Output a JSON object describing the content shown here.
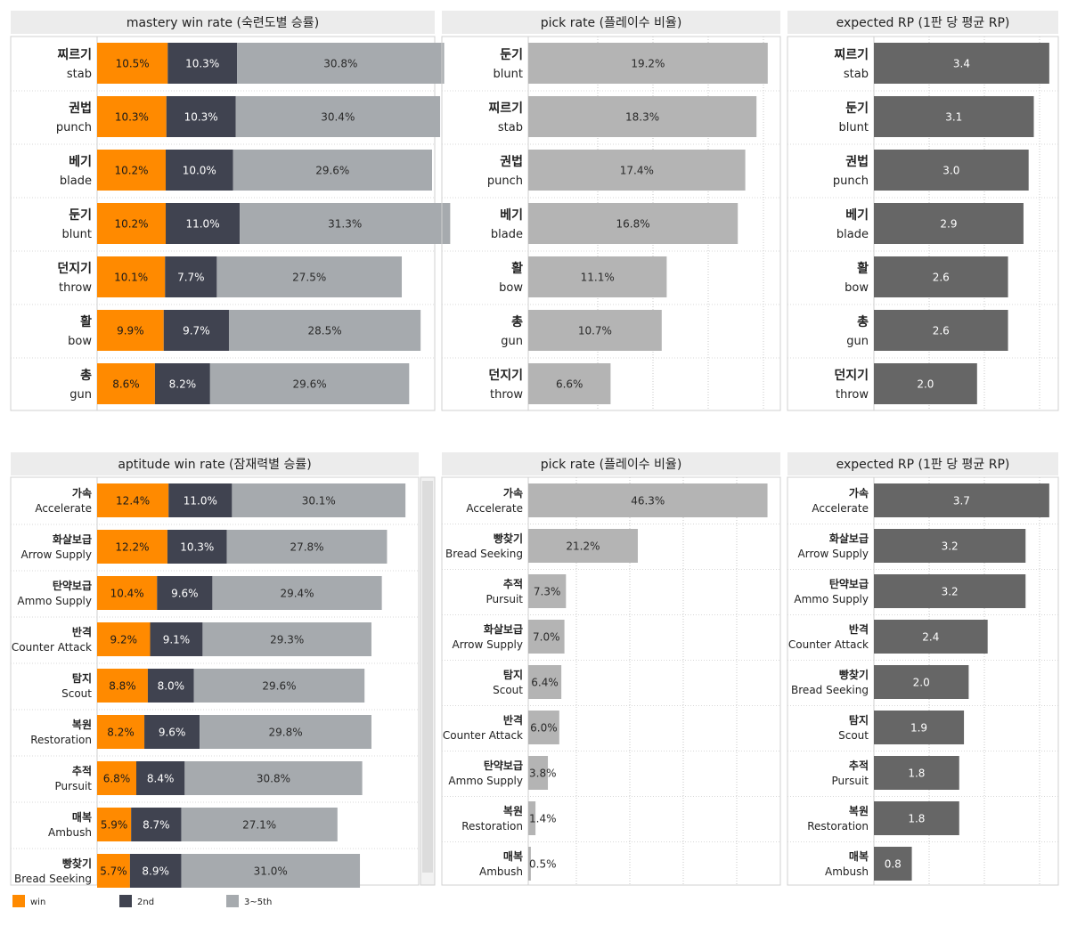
{
  "colors": {
    "win": "#ff8a00",
    "second": "#404350",
    "third": "#a6aaae",
    "pick": "#b4b4b4",
    "rp": "#666666",
    "title_bg": "#ececec"
  },
  "legend": [
    {
      "label": "win",
      "color": "#ff8a00"
    },
    {
      "label": "2nd",
      "color": "#404350"
    },
    {
      "label": "3~5th",
      "color": "#a6aaae"
    }
  ],
  "chart_data": [
    {
      "type": "bar",
      "orientation": "horizontal",
      "stacked": true,
      "title": "mastery win rate (숙련도별 승률)",
      "categories": [
        {
          "ko": "찌르기",
          "en": "stab"
        },
        {
          "ko": "권법",
          "en": "punch"
        },
        {
          "ko": "베기",
          "en": "blade"
        },
        {
          "ko": "둔기",
          "en": "blunt"
        },
        {
          "ko": "던지기",
          "en": "throw"
        },
        {
          "ko": "활",
          "en": "bow"
        },
        {
          "ko": "총",
          "en": "gun"
        }
      ],
      "series": [
        {
          "name": "win",
          "values": [
            10.5,
            10.3,
            10.2,
            10.2,
            10.1,
            9.9,
            8.6
          ],
          "labels": [
            "10.5%",
            "10.3%",
            "10.2%",
            "10.2%",
            "10.1%",
            "9.9%",
            "8.6%"
          ]
        },
        {
          "name": "2nd",
          "values": [
            10.3,
            10.3,
            10.0,
            11.0,
            7.7,
            9.7,
            8.2
          ],
          "labels": [
            "10.3%",
            "10.3%",
            "10.0%",
            "11.0%",
            "7.7%",
            "9.7%",
            "8.2%"
          ]
        },
        {
          "name": "3~5th",
          "values": [
            30.8,
            30.4,
            29.6,
            31.3,
            27.5,
            28.5,
            29.6
          ],
          "labels": [
            "30.8%",
            "30.4%",
            "29.6%",
            "31.3%",
            "27.5%",
            "28.5%",
            "29.6%"
          ]
        }
      ]
    },
    {
      "type": "bar",
      "orientation": "horizontal",
      "title": "pick rate (플레이수 비율)",
      "categories": [
        {
          "ko": "둔기",
          "en": "blunt"
        },
        {
          "ko": "찌르기",
          "en": "stab"
        },
        {
          "ko": "권법",
          "en": "punch"
        },
        {
          "ko": "베기",
          "en": "blade"
        },
        {
          "ko": "활",
          "en": "bow"
        },
        {
          "ko": "총",
          "en": "gun"
        },
        {
          "ko": "던지기",
          "en": "throw"
        }
      ],
      "values": [
        19.2,
        18.3,
        17.4,
        16.8,
        11.1,
        10.7,
        6.6
      ],
      "labels": [
        "19.2%",
        "18.3%",
        "17.4%",
        "16.8%",
        "11.1%",
        "10.7%",
        "6.6%"
      ]
    },
    {
      "type": "bar",
      "orientation": "horizontal",
      "title": "expected RP (1판 당 평균 RP)",
      "categories": [
        {
          "ko": "찌르기",
          "en": "stab"
        },
        {
          "ko": "둔기",
          "en": "blunt"
        },
        {
          "ko": "권법",
          "en": "punch"
        },
        {
          "ko": "베기",
          "en": "blade"
        },
        {
          "ko": "활",
          "en": "bow"
        },
        {
          "ko": "총",
          "en": "gun"
        },
        {
          "ko": "던지기",
          "en": "throw"
        }
      ],
      "values": [
        3.4,
        3.1,
        3.0,
        2.9,
        2.6,
        2.6,
        2.0
      ],
      "labels": [
        "3.4",
        "3.1",
        "3.0",
        "2.9",
        "2.6",
        "2.6",
        "2.0"
      ]
    },
    {
      "type": "bar",
      "orientation": "horizontal",
      "stacked": true,
      "title": "aptitude win rate (잠재력별 승률)",
      "categories": [
        {
          "ko": "가속",
          "en": "Accelerate"
        },
        {
          "ko": "화살보급",
          "en": "Arrow Supply"
        },
        {
          "ko": "탄약보급",
          "en": "Ammo Supply"
        },
        {
          "ko": "반격",
          "en": "Counter Attack"
        },
        {
          "ko": "탐지",
          "en": "Scout"
        },
        {
          "ko": "복원",
          "en": "Restoration"
        },
        {
          "ko": "추적",
          "en": "Pursuit"
        },
        {
          "ko": "매복",
          "en": "Ambush"
        },
        {
          "ko": "빵찾기",
          "en": "Bread Seeking"
        }
      ],
      "series": [
        {
          "name": "win",
          "values": [
            12.4,
            12.2,
            10.4,
            9.2,
            8.8,
            8.2,
            6.8,
            5.9,
            5.7
          ],
          "labels": [
            "12.4%",
            "12.2%",
            "10.4%",
            "9.2%",
            "8.8%",
            "8.2%",
            "6.8%",
            "5.9%",
            "5.7%"
          ]
        },
        {
          "name": "2nd",
          "values": [
            11.0,
            10.3,
            9.6,
            9.1,
            8.0,
            9.6,
            8.4,
            8.7,
            8.9
          ],
          "labels": [
            "11.0%",
            "10.3%",
            "9.6%",
            "9.1%",
            "8.0%",
            "9.6%",
            "8.4%",
            "8.7%",
            "8.9%"
          ]
        },
        {
          "name": "3~5th",
          "values": [
            30.1,
            27.8,
            29.4,
            29.3,
            29.6,
            29.8,
            30.8,
            27.1,
            31.0
          ],
          "labels": [
            "30.1%",
            "27.8%",
            "29.4%",
            "29.3%",
            "29.6%",
            "29.8%",
            "30.8%",
            "27.1%",
            "31.0%"
          ]
        }
      ]
    },
    {
      "type": "bar",
      "orientation": "horizontal",
      "title": "pick rate (플레이수 비율)",
      "categories": [
        {
          "ko": "가속",
          "en": "Accelerate"
        },
        {
          "ko": "빵찾기",
          "en": "Bread Seeking"
        },
        {
          "ko": "추적",
          "en": "Pursuit"
        },
        {
          "ko": "화살보급",
          "en": "Arrow Supply"
        },
        {
          "ko": "탐지",
          "en": "Scout"
        },
        {
          "ko": "반격",
          "en": "Counter Attack"
        },
        {
          "ko": "탄약보급",
          "en": "Ammo Supply"
        },
        {
          "ko": "복원",
          "en": "Restoration"
        },
        {
          "ko": "매복",
          "en": "Ambush"
        }
      ],
      "values": [
        46.3,
        21.2,
        7.3,
        7.0,
        6.4,
        6.0,
        3.8,
        1.4,
        0.5
      ],
      "labels": [
        "46.3%",
        "21.2%",
        "7.3%",
        "7.0%",
        "6.4%",
        "6.0%",
        "3.8%",
        "1.4%",
        "0.5%"
      ]
    },
    {
      "type": "bar",
      "orientation": "horizontal",
      "title": "expected RP (1판 당 평균 RP)",
      "categories": [
        {
          "ko": "가속",
          "en": "Accelerate"
        },
        {
          "ko": "화살보급",
          "en": "Arrow Supply"
        },
        {
          "ko": "탄약보급",
          "en": "Ammo Supply"
        },
        {
          "ko": "반격",
          "en": "Counter Attack"
        },
        {
          "ko": "빵찾기",
          "en": "Bread Seeking"
        },
        {
          "ko": "탐지",
          "en": "Scout"
        },
        {
          "ko": "추적",
          "en": "Pursuit"
        },
        {
          "ko": "복원",
          "en": "Restoration"
        },
        {
          "ko": "매복",
          "en": "Ambush"
        }
      ],
      "values": [
        3.7,
        3.2,
        3.2,
        2.4,
        2.0,
        1.9,
        1.8,
        1.8,
        0.8
      ],
      "labels": [
        "3.7",
        "3.2",
        "3.2",
        "2.4",
        "2.0",
        "1.9",
        "1.8",
        "1.8",
        "0.8"
      ]
    }
  ]
}
